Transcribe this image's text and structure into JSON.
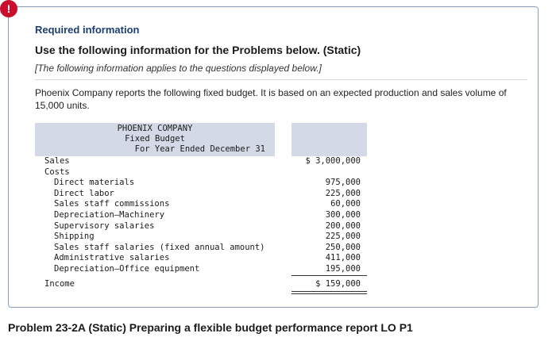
{
  "alert": {
    "symbol": "!"
  },
  "header": {
    "required_info": "Required information",
    "section_title": "Use the following information for the Problems below. (Static)",
    "note": "[The following information applies to the questions displayed below.]"
  },
  "intro": "Phoenix Company reports the following fixed budget. It is based on an expected production and sales volume of 15,000 units.",
  "budget": {
    "company": "PHOENIX COMPANY",
    "report_name": "Fixed Budget",
    "period": "For Year Ended December 31",
    "sales_label": "Sales",
    "sales_value": "$ 3,000,000",
    "costs_label": "Costs",
    "cost_items": [
      {
        "label": "Direct materials",
        "value": "975,000"
      },
      {
        "label": "Direct labor",
        "value": "225,000"
      },
      {
        "label": "Sales staff commissions",
        "value": "60,000"
      },
      {
        "label": "Depreciation—Machinery",
        "value": "300,000"
      },
      {
        "label": "Supervisory salaries",
        "value": "200,000"
      },
      {
        "label": "Shipping",
        "value": "225,000"
      },
      {
        "label": "Sales staff salaries (fixed annual amount)",
        "value": "250,000"
      },
      {
        "label": "Administrative salaries",
        "value": "411,000"
      },
      {
        "label": "Depreciation—Office equipment",
        "value": "195,000"
      }
    ],
    "income_label": "Income",
    "income_value": "$ 159,000"
  },
  "problem_title": "Problem 23-2A (Static) Preparing a flexible budget performance report LO P1"
}
